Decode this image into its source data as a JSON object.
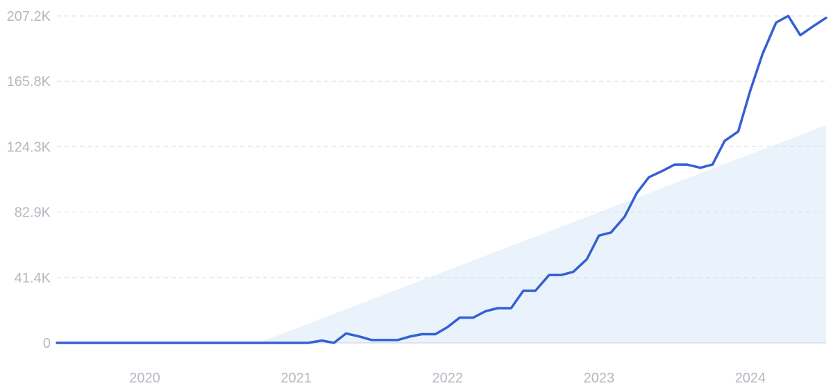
{
  "chart_data": {
    "type": "line",
    "title": "",
    "xlabel": "",
    "ylabel": "",
    "grid": true,
    "legend": "none",
    "xlim": [
      2019.42,
      2024.5
    ],
    "ylim": [
      0,
      207200
    ],
    "y_ticks": [
      {
        "value": 0,
        "label": "0"
      },
      {
        "value": 41400,
        "label": "41.4K"
      },
      {
        "value": 82900,
        "label": "82.9K"
      },
      {
        "value": 124300,
        "label": "124.3K"
      },
      {
        "value": 165800,
        "label": "165.8K"
      },
      {
        "value": 207200,
        "label": "207.2K"
      }
    ],
    "x_ticks": [
      {
        "value": 2020.0,
        "label": "2020"
      },
      {
        "value": 2021.0,
        "label": "2021"
      },
      {
        "value": 2022.0,
        "label": "2022"
      },
      {
        "value": 2023.0,
        "label": "2023"
      },
      {
        "value": 2024.0,
        "label": "2024"
      }
    ],
    "series": [
      {
        "x": [
          2019.42,
          2019.75,
          2020.08,
          2020.42,
          2020.75,
          2021.0,
          2021.08,
          2021.17,
          2021.25,
          2021.33,
          2021.42,
          2021.5,
          2021.58,
          2021.67,
          2021.75,
          2021.83,
          2021.92,
          2022.0,
          2022.08,
          2022.17,
          2022.25,
          2022.33,
          2022.42,
          2022.5,
          2022.58,
          2022.67,
          2022.75,
          2022.83,
          2022.92,
          2023.0,
          2023.08,
          2023.17,
          2023.25,
          2023.33,
          2023.42,
          2023.5,
          2023.58,
          2023.67,
          2023.75,
          2023.83,
          2023.92,
          2024.0,
          2024.08,
          2024.17,
          2024.25,
          2024.33,
          2024.42,
          2024.5
        ],
        "values": [
          0,
          0,
          0,
          0,
          0,
          0,
          0,
          1500,
          0,
          6000,
          4000,
          1800,
          1800,
          1800,
          4000,
          5500,
          5500,
          10000,
          16000,
          16000,
          20000,
          22000,
          22000,
          33000,
          33000,
          43000,
          43000,
          45000,
          53000,
          68000,
          70000,
          80000,
          95000,
          105000,
          109000,
          113000,
          113000,
          111000,
          113000,
          128000,
          134000,
          160000,
          183000,
          203000,
          207200,
          195000,
          201000,
          206000
        ]
      }
    ],
    "trend": {
      "x": [
        2020.75,
        2024.5
      ],
      "values": [
        0,
        138000
      ]
    },
    "colors": {
      "line": "#3360D4",
      "trend_fill": "#EAF2FC",
      "grid": "#D9DCE1",
      "axis": "#D9DCE1",
      "tick_text": "#B4B8BF"
    }
  }
}
